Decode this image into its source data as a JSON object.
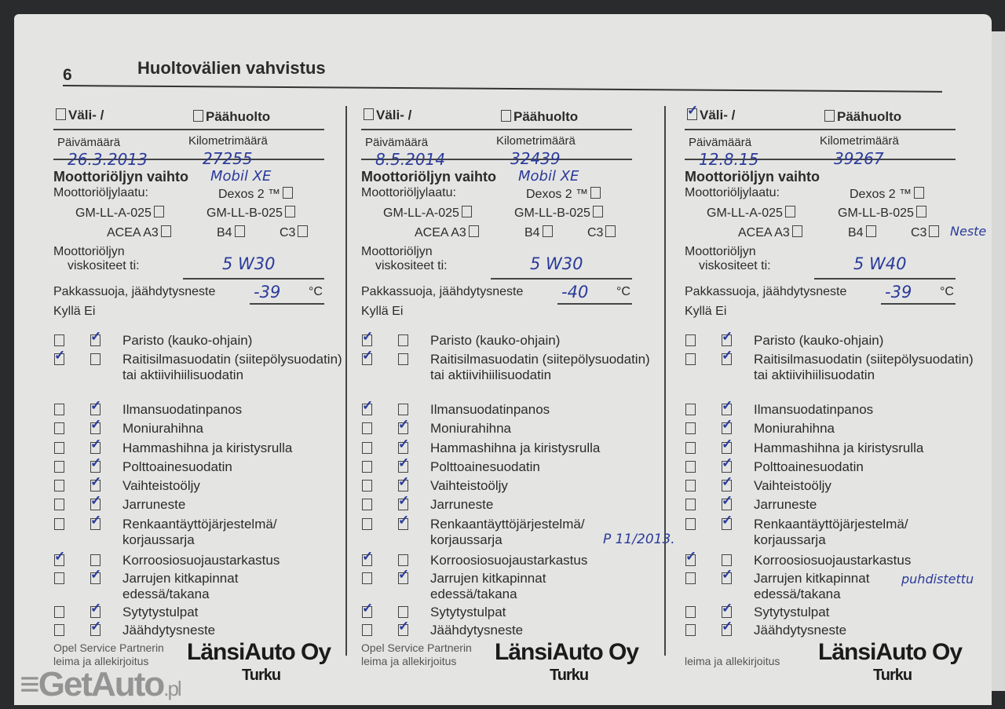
{
  "page_number": "6",
  "title": "Huoltovälien vahvistus",
  "labels": {
    "interim": "Väli- /",
    "main_service": "Päähuolto",
    "date": "Päivämäärä",
    "km": "Kilometrimäärä",
    "oil_change": "Moottoriöljyn vaihto",
    "oil_quality": "Moottoriöljylaatu:",
    "dexos": "Dexos 2 ™",
    "gm_a": "GM-LL-A-025",
    "gm_b": "GM-LL-B-025",
    "acea": "ACEA A3",
    "b4": "B4",
    "c3": "C3",
    "viscosity_1": "Moottoriöljyn",
    "viscosity_2": "viskositeet ti:",
    "antifreeze": "Pakkassuoja, jäähdytysneste",
    "celsius": "°C",
    "yes": "Kyllä",
    "no": "Ei"
  },
  "items": [
    "Paristo (kauko-ohjain)",
    "Raitisilmasuodatin (siitepölysuodatin) tai aktiivihiilisuodatin",
    "Ilmansuodatinpanos",
    "Moniurahihna",
    "Hammashihna ja kiristysrulla",
    "Polttoainesuodatin",
    "Vaihteistoöljy",
    "Jarruneste",
    "Renkaantäyttöjärjestelmä/ korjaussarja",
    "Korroosiosuojaustarkastus",
    "Jarrujen kitkapinnat edessä/takana",
    "Sytytystulpat",
    "Jäähdytysneste"
  ],
  "columns": [
    {
      "interim_checked": false,
      "date": "26.3.2013",
      "km": "27255",
      "oil": "Mobil XE",
      "viscosity": "5 W30",
      "antifreeze": "-39",
      "checks": [
        "no",
        "yes",
        "no",
        "no",
        "no",
        "no",
        "no",
        "no",
        "no",
        "yes",
        "no",
        "no",
        "no"
      ],
      "stamp": "LänsiAuto Oy",
      "stamp_city": "Turku",
      "sign_label_1": "Opel Service Partnerin",
      "sign_label_2": "leima ja allekirjoitus"
    },
    {
      "interim_checked": false,
      "date": "8.5.2014",
      "km": "32439",
      "oil": "Mobil XE",
      "viscosity": "5 W30",
      "antifreeze": "-40",
      "checks": [
        "yes",
        "yes",
        "yes",
        "no",
        "no",
        "no",
        "no",
        "no",
        "no",
        "yes",
        "no",
        "yes",
        "no"
      ],
      "note": "P 11/2013.",
      "stamp": "LänsiAuto Oy",
      "stamp_city": "Turku",
      "sign_label_1": "Opel Service Partnerin",
      "sign_label_2": "leima ja allekirjoitus"
    },
    {
      "interim_checked": true,
      "date": "12.8.15",
      "km": "39267",
      "oil": "Neste",
      "viscosity": "5 W40",
      "antifreeze": "-39",
      "checks": [
        "no",
        "no",
        "no",
        "no",
        "no",
        "no",
        "no",
        "no",
        "no",
        "yes",
        "no",
        "no",
        "no"
      ],
      "note": "puhdistettu",
      "stamp": "LänsiAuto Oy",
      "stamp_city": "Turku",
      "sign_label_2": "leima ja allekirjoitus"
    }
  ],
  "watermark": {
    "main": "GetAuto",
    "suffix": ".pl"
  }
}
